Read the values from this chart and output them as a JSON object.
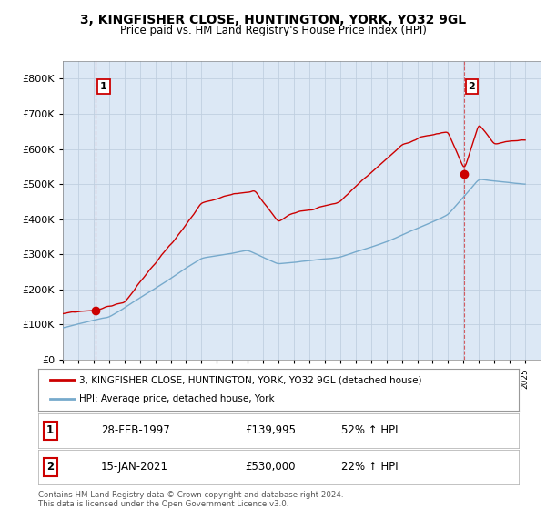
{
  "title": "3, KINGFISHER CLOSE, HUNTINGTON, YORK, YO32 9GL",
  "subtitle": "Price paid vs. HM Land Registry's House Price Index (HPI)",
  "legend_line1": "3, KINGFISHER CLOSE, HUNTINGTON, YORK, YO32 9GL (detached house)",
  "legend_line2": "HPI: Average price, detached house, York",
  "point1_label": "1",
  "point1_date": "28-FEB-1997",
  "point1_price": "£139,995",
  "point1_hpi": "52% ↑ HPI",
  "point1_x": 1997.15,
  "point1_y": 139995,
  "point2_label": "2",
  "point2_date": "15-JAN-2021",
  "point2_price": "£530,000",
  "point2_hpi": "22% ↑ HPI",
  "point2_x": 2021.04,
  "point2_y": 530000,
  "red_color": "#cc0000",
  "blue_color": "#77aacc",
  "background_color": "#dce8f5",
  "outer_bg": "#ffffff",
  "grid_color": "#c0cfe0",
  "footer": "Contains HM Land Registry data © Crown copyright and database right 2024.\nThis data is licensed under the Open Government Licence v3.0.",
  "ylim": [
    0,
    850000
  ],
  "yticks": [
    0,
    100000,
    200000,
    300000,
    400000,
    500000,
    600000,
    700000,
    800000
  ],
  "xmin": 1995.0,
  "xmax": 2026.0
}
